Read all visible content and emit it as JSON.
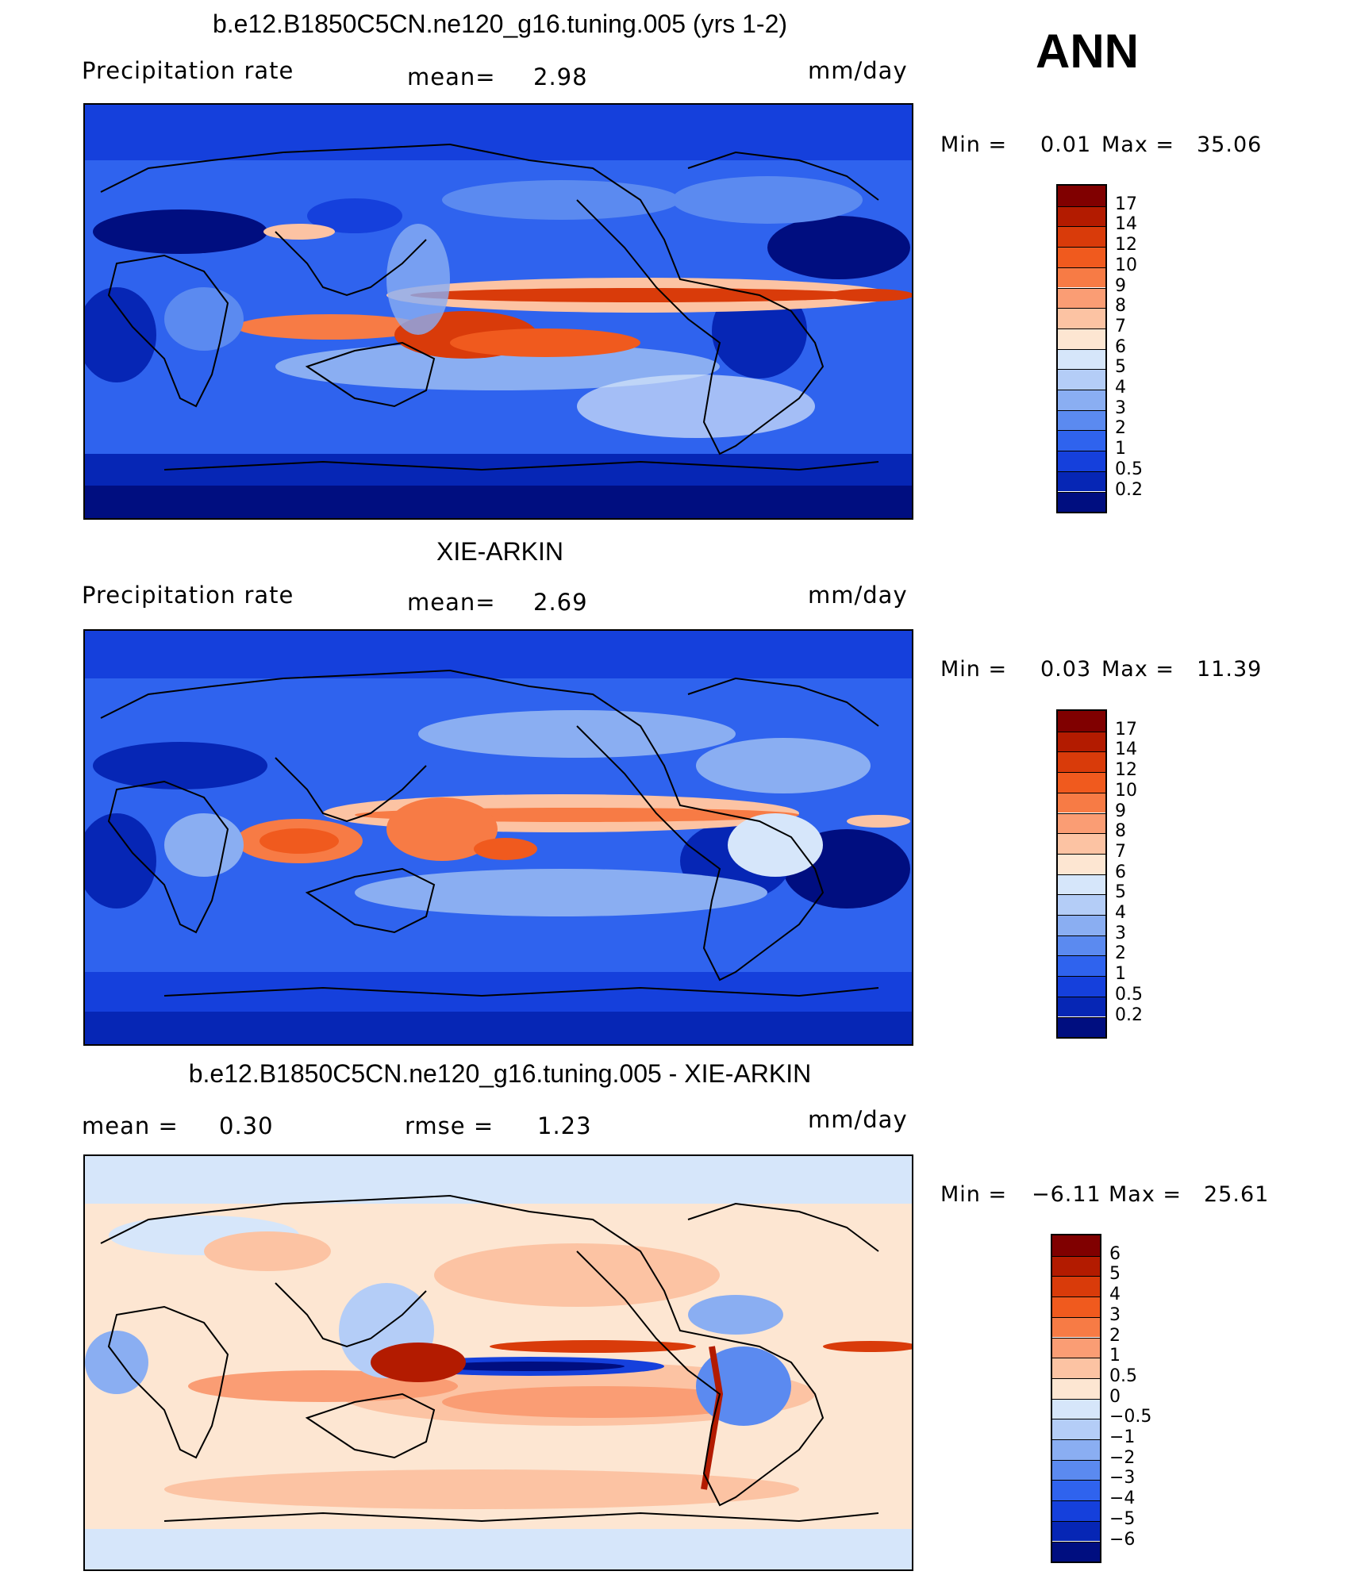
{
  "season": "ANN",
  "panels": [
    {
      "title": "b.e12.B1850C5CN.ne120_g16.tuning.005 (yrs 1-2)",
      "left_label": "Precipitation  rate",
      "stat1_label": "mean=",
      "stat1_value": "2.98",
      "stat2_label": "",
      "stat2_value": "",
      "units": "mm/day",
      "min_label": "Min  =",
      "min_value": "0.01",
      "max_label": "Max  =",
      "max_value": "35.06",
      "colorbar_labels": [
        "17",
        "14",
        "12",
        "10",
        "9",
        "8",
        "7",
        "6",
        "5",
        "4",
        "3",
        "2",
        "1",
        "0.5",
        "0.2"
      ],
      "colorbar_colors": [
        "#800000",
        "#b31b00",
        "#d93b0a",
        "#f05a1e",
        "#f77b45",
        "#fa9d74",
        "#fcc3a3",
        "#fde6d2",
        "#d6e6fa",
        "#b4cdf7",
        "#8aaef2",
        "#5b8af0",
        "#2f63ee",
        "#1540dc",
        "#0626b5",
        "#000e80"
      ]
    },
    {
      "title": "XIE-ARKIN",
      "left_label": "Precipitation  rate",
      "stat1_label": "mean=",
      "stat1_value": "2.69",
      "stat2_label": "",
      "stat2_value": "",
      "units": "mm/day",
      "min_label": "Min  =",
      "min_value": "0.03",
      "max_label": "Max  =",
      "max_value": "11.39",
      "colorbar_labels": [
        "17",
        "14",
        "12",
        "10",
        "9",
        "8",
        "7",
        "6",
        "5",
        "4",
        "3",
        "2",
        "1",
        "0.5",
        "0.2"
      ],
      "colorbar_colors": [
        "#800000",
        "#b31b00",
        "#d93b0a",
        "#f05a1e",
        "#f77b45",
        "#fa9d74",
        "#fcc3a3",
        "#fde6d2",
        "#d6e6fa",
        "#b4cdf7",
        "#8aaef2",
        "#5b8af0",
        "#2f63ee",
        "#1540dc",
        "#0626b5",
        "#000e80"
      ]
    },
    {
      "title": "b.e12.B1850C5CN.ne120_g16.tuning.005 - XIE-ARKIN",
      "left_label": "mean  =",
      "stat1_label": "0.30",
      "stat1_value": "",
      "stat2_label": "rmse  =",
      "stat2_value": "1.23",
      "units": "mm/day",
      "min_label": "Min  =",
      "min_value": "−6.11",
      "max_label": "Max  =",
      "max_value": "25.61",
      "colorbar_labels": [
        "6",
        "5",
        "4",
        "3",
        "2",
        "1",
        "0.5",
        "0",
        "−0.5",
        "−1",
        "−2",
        "−3",
        "−4",
        "−5",
        "−6"
      ],
      "colorbar_colors": [
        "#800000",
        "#b31b00",
        "#d93b0a",
        "#f05a1e",
        "#f77b45",
        "#fa9d74",
        "#fcc3a3",
        "#fde6d2",
        "#d6e6fa",
        "#b4cdf7",
        "#8aaef2",
        "#5b8af0",
        "#2f63ee",
        "#1540dc",
        "#0626b5",
        "#000e80"
      ]
    }
  ]
}
